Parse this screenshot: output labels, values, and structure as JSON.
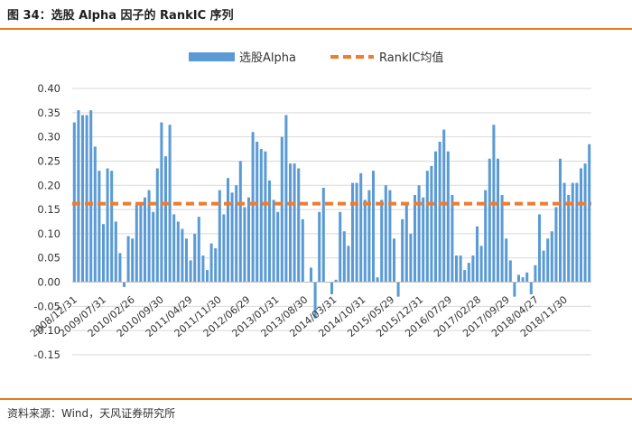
{
  "header": {
    "title": "图 34：选股 Alpha 因子的 RankIC 序列"
  },
  "footer": {
    "source": "资料来源：Wind，天风证券研究所"
  },
  "colors": {
    "bar": "#5b9bd5",
    "mean_line": "#ed7d31",
    "accent_rule": "#e07b1e",
    "grid": "#d9d9d9"
  },
  "chart_data": {
    "type": "bar",
    "title": "",
    "xlabel": "",
    "ylabel": "",
    "ylim": [
      -0.15,
      0.4
    ],
    "yticks": [
      "0.40",
      "0.35",
      "0.30",
      "0.25",
      "0.20",
      "0.15",
      "0.10",
      "0.05",
      "0.00",
      "-0.05",
      "-0.10",
      "-0.15"
    ],
    "ytick_values": [
      0.4,
      0.35,
      0.3,
      0.25,
      0.2,
      0.15,
      0.1,
      0.05,
      0.0,
      -0.05,
      -0.1,
      -0.15
    ],
    "grid": true,
    "legend_position": "top-center",
    "x_tick_labels": [
      "2008/12/31",
      "2009/07/31",
      "2010/02/26",
      "2010/09/30",
      "2011/04/29",
      "2011/11/30",
      "2012/06/29",
      "2013/01/31",
      "2013/08/30",
      "2014/03/31",
      "2014/10/31",
      "2015/05/29",
      "2015/12/31",
      "2016/07/29",
      "2017/02/28",
      "2017/09/29",
      "2018/04/27",
      "2018/11/30"
    ],
    "series": [
      {
        "name": "选股Alpha",
        "type": "bar",
        "values": [
          0.33,
          0.355,
          0.345,
          0.345,
          0.355,
          0.28,
          0.23,
          0.12,
          0.235,
          0.23,
          0.125,
          0.06,
          -0.01,
          0.095,
          0.09,
          0.16,
          0.165,
          0.175,
          0.19,
          0.145,
          0.235,
          0.33,
          0.26,
          0.325,
          0.14,
          0.125,
          0.11,
          0.09,
          0.045,
          0.1,
          0.135,
          0.055,
          0.025,
          0.08,
          0.07,
          0.19,
          0.14,
          0.215,
          0.185,
          0.2,
          0.25,
          0.155,
          0.175,
          0.31,
          0.29,
          0.275,
          0.27,
          0.21,
          0.17,
          0.145,
          0.3,
          0.345,
          0.245,
          0.245,
          0.235,
          0.13,
          0.0,
          0.03,
          -0.075,
          0.145,
          0.195,
          0.0,
          -0.025,
          0.005,
          0.145,
          0.105,
          0.075,
          0.205,
          0.205,
          0.225,
          0.17,
          0.19,
          0.23,
          0.01,
          0.17,
          0.2,
          0.19,
          0.09,
          -0.03,
          0.13,
          0.165,
          0.1,
          0.18,
          0.2,
          0.175,
          0.23,
          0.24,
          0.27,
          0.29,
          0.315,
          0.27,
          0.18,
          0.055,
          0.055,
          0.025,
          0.04,
          0.055,
          0.115,
          0.075,
          0.19,
          0.255,
          0.325,
          0.255,
          0.18,
          0.09,
          0.045,
          -0.03,
          0.015,
          0.01,
          0.02,
          -0.025,
          0.035,
          0.14,
          0.065,
          0.09,
          0.105,
          0.155,
          0.255,
          0.205,
          0.18,
          0.205,
          0.205,
          0.235,
          0.245,
          0.285
        ]
      },
      {
        "name": "RankIC均值",
        "type": "line",
        "value": 0.162
      }
    ]
  }
}
